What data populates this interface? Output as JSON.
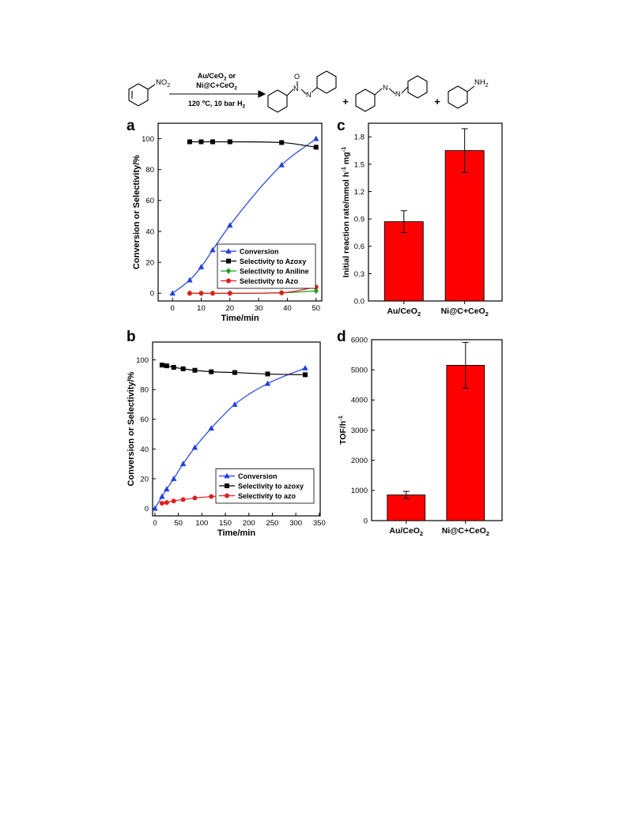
{
  "scheme": {
    "reactant_group": "NO",
    "reactant_sub": "2",
    "catalyst_line1_main": "Au/CeO",
    "catalyst_line1_sub": "2",
    "catalyst_line1_rest": " or",
    "catalyst_line2_main": "Ni@C+CeO",
    "catalyst_line2_sub": "2",
    "cond_temp": "120 ",
    "cond_deg": "o",
    "cond_rest": "C, 10 bar H",
    "cond_sub": "2",
    "azoxy_o": "O",
    "azoxy_n1": "N",
    "azoxy_n2": "N",
    "azo_n1": "N",
    "azo_n2": "N",
    "aniline_group": "NH",
    "aniline_sub": "2",
    "plus": "+"
  },
  "chart_data": [
    {
      "panel": "a",
      "type": "line",
      "xlabel": "Time/min",
      "ylabel": "Conversion or Selectivity/%",
      "xlim": [
        -5,
        52
      ],
      "ylim": [
        -5,
        110
      ],
      "xticks": [
        0,
        10,
        20,
        30,
        40,
        50
      ],
      "yticks": [
        0,
        20,
        40,
        60,
        80,
        100
      ],
      "legend_position": "bottom-right",
      "series": [
        {
          "name": "Conversion",
          "color": "#1f3fe0",
          "marker": "triangle",
          "x": [
            0,
            6,
            10,
            14,
            20,
            38,
            50
          ],
          "y": [
            0,
            8.5,
            17,
            28,
            44,
            83,
            100
          ]
        },
        {
          "name": "Selectivity to Azoxy",
          "color": "#000000",
          "marker": "square",
          "x": [
            6,
            10,
            14,
            20,
            38,
            50
          ],
          "y": [
            98,
            98,
            98,
            98,
            97.5,
            94.5
          ]
        },
        {
          "name": "Selectivity to Aniline",
          "color": "#1f9e1f",
          "marker": "diamond",
          "x": [
            6,
            10,
            14,
            20,
            38,
            50
          ],
          "y": [
            0,
            0,
            0,
            0,
            0.3,
            1.5
          ]
        },
        {
          "name": "Selectivity to Azo",
          "color": "#e01f1f",
          "marker": "circle",
          "x": [
            6,
            10,
            14,
            20,
            38,
            50
          ],
          "y": [
            0,
            0,
            0,
            0,
            0.3,
            4
          ]
        }
      ]
    },
    {
      "panel": "b",
      "type": "line",
      "xlabel": "Time/min",
      "ylabel": "Conversion or Selectivity/%",
      "xlim": [
        -5,
        352
      ],
      "ylim": [
        -5,
        112
      ],
      "xticks": [
        0,
        50,
        100,
        150,
        200,
        250,
        300,
        350
      ],
      "yticks": [
        0,
        20,
        40,
        60,
        80,
        100
      ],
      "legend_position": "bottom-right",
      "series": [
        {
          "name": "Conversion",
          "color": "#1f3fe0",
          "marker": "triangle",
          "x": [
            0,
            15,
            25,
            40,
            60,
            85,
            120,
            170,
            240,
            320
          ],
          "y": [
            0,
            8,
            13,
            20,
            30,
            41,
            54,
            70,
            84,
            94.5
          ]
        },
        {
          "name": "Selectivity to azoxy",
          "color": "#000000",
          "marker": "square",
          "x": [
            15,
            25,
            40,
            60,
            85,
            120,
            170,
            240,
            320
          ],
          "y": [
            96.5,
            96,
            95,
            94,
            93,
            92,
            91.5,
            90.5,
            90
          ]
        },
        {
          "name": "Selectivity to azo",
          "color": "#e01f1f",
          "marker": "circle",
          "x": [
            15,
            25,
            40,
            60,
            85,
            120,
            170,
            240,
            320
          ],
          "y": [
            3.5,
            4,
            5,
            6,
            7,
            8,
            8.5,
            9,
            9.5
          ]
        }
      ]
    },
    {
      "panel": "c",
      "type": "bar",
      "ylabel_main": "Initial reaction rate/mmol h",
      "ylabel_sup1": "-1",
      "ylabel_mid": " mg",
      "ylabel_sup2": "-1",
      "ylim": [
        0,
        1.95
      ],
      "yticks": [
        "0.0",
        "0.3",
        "0.6",
        "0.9",
        "1.2",
        "1.5",
        "1.8"
      ],
      "color": "#ff0000",
      "categories": [
        {
          "main": "Au/CeO",
          "sub": "2"
        },
        {
          "main": "Ni@C+CeO",
          "sub": "2"
        }
      ],
      "values": [
        0.87,
        1.65
      ],
      "errors": [
        0.12,
        0.24
      ]
    },
    {
      "panel": "d",
      "type": "bar",
      "ylabel_main": "TOF/h",
      "ylabel_sup": "-1",
      "ylim": [
        0,
        6000
      ],
      "yticks": [
        "0",
        "1000",
        "2000",
        "3000",
        "4000",
        "5000",
        "6000"
      ],
      "color": "#ff0000",
      "categories": [
        {
          "main": "Au/CeO",
          "sub": "2"
        },
        {
          "main": "Ni@C+CeO",
          "sub": "2"
        }
      ],
      "values": [
        850,
        5150
      ],
      "errors": [
        120,
        760
      ]
    }
  ]
}
